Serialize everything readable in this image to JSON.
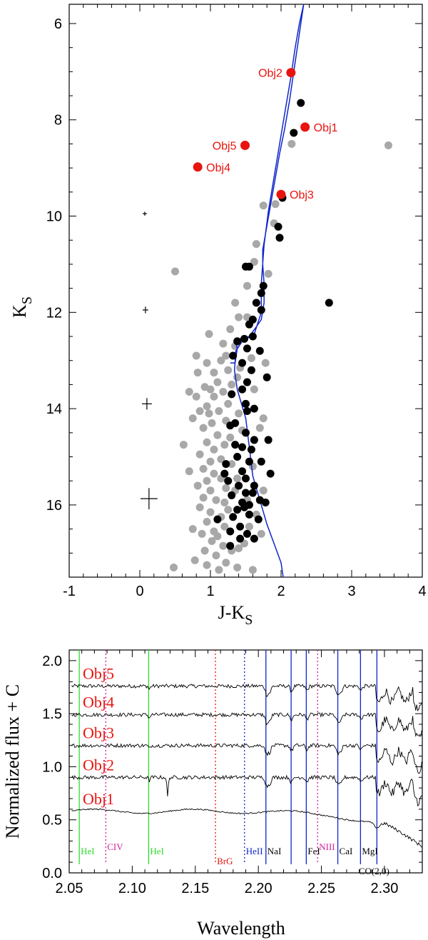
{
  "colors": {
    "red": "#e8140f",
    "grey": "#a8a8a8",
    "black": "#000000",
    "blue": "#1026c8",
    "green": "#2fdc2f",
    "magenta": "#d4209a"
  },
  "chart_data": [
    {
      "type": "scatter",
      "xlabel": "J-K",
      "xlabel_sub": "S",
      "ylabel": "K",
      "ylabel_sub": "S",
      "xlim": [
        -1,
        4
      ],
      "ylim": [
        17.5,
        5.6
      ],
      "y_inverted": true,
      "x_ticks": [
        "-1",
        "0",
        "1",
        "2",
        "3",
        "4"
      ],
      "y_ticks": [
        "6",
        "8",
        "10",
        "12",
        "14",
        "16"
      ],
      "objects": [
        {
          "name": "Obj1",
          "x": 2.34,
          "y": 8.15
        },
        {
          "name": "Obj2",
          "x": 2.14,
          "y": 7.02
        },
        {
          "name": "Obj3",
          "x": 2.0,
          "y": 9.55
        },
        {
          "name": "Obj4",
          "x": 0.82,
          "y": 8.98
        },
        {
          "name": "Obj5",
          "x": 1.49,
          "y": 8.53
        }
      ],
      "error_bars": [
        {
          "x": 0.07,
          "y": 9.95,
          "dx": 0.03,
          "dy": 0.04
        },
        {
          "x": 0.08,
          "y": 11.95,
          "dx": 0.04,
          "dy": 0.07
        },
        {
          "x": 0.1,
          "y": 13.9,
          "dx": 0.07,
          "dy": 0.12
        },
        {
          "x": 0.13,
          "y": 15.87,
          "dx": 0.12,
          "dy": 0.22
        }
      ],
      "black_points": [
        [
          2.28,
          7.65
        ],
        [
          2.18,
          8.27
        ],
        [
          2.02,
          9.62
        ],
        [
          1.96,
          10.22
        ],
        [
          1.98,
          10.45
        ],
        [
          1.55,
          11.05
        ],
        [
          1.5,
          11.05
        ],
        [
          1.75,
          11.45
        ],
        [
          1.72,
          11.6
        ],
        [
          1.65,
          11.8
        ],
        [
          1.72,
          11.95
        ],
        [
          1.6,
          12.15
        ],
        [
          2.68,
          11.8
        ],
        [
          1.55,
          12.25
        ],
        [
          1.48,
          12.55
        ],
        [
          1.6,
          12.5
        ],
        [
          1.38,
          12.6
        ],
        [
          1.52,
          12.75
        ],
        [
          1.45,
          13.05
        ],
        [
          1.32,
          12.9
        ],
        [
          1.7,
          12.8
        ],
        [
          1.58,
          13.2
        ],
        [
          1.8,
          13.35
        ],
        [
          1.52,
          13.45
        ],
        [
          1.45,
          13.6
        ],
        [
          1.3,
          13.7
        ],
        [
          1.5,
          13.9
        ],
        [
          1.62,
          14.0
        ],
        [
          1.52,
          14.05
        ],
        [
          1.28,
          14.35
        ],
        [
          1.35,
          14.3
        ],
        [
          1.5,
          14.5
        ],
        [
          1.62,
          14.65
        ],
        [
          1.82,
          14.65
        ],
        [
          1.45,
          14.8
        ],
        [
          1.38,
          15.0
        ],
        [
          1.55,
          15.1
        ],
        [
          1.72,
          15.1
        ],
        [
          1.45,
          15.3
        ],
        [
          1.5,
          15.45
        ],
        [
          1.85,
          15.35
        ],
        [
          1.2,
          15.35
        ],
        [
          1.25,
          15.5
        ],
        [
          1.4,
          15.6
        ],
        [
          1.62,
          15.6
        ],
        [
          1.3,
          15.8
        ],
        [
          1.45,
          15.95
        ],
        [
          1.7,
          15.9
        ],
        [
          1.78,
          15.95
        ],
        [
          1.38,
          16.1
        ],
        [
          1.55,
          16.2
        ],
        [
          1.68,
          16.3
        ],
        [
          1.42,
          16.45
        ],
        [
          1.28,
          16.55
        ],
        [
          1.52,
          16.6
        ],
        [
          1.62,
          16.7
        ],
        [
          1.28,
          16.85
        ],
        [
          1.1,
          16.3
        ],
        [
          1.32,
          16.25
        ],
        [
          1.55,
          16.0
        ],
        [
          1.22,
          15.15
        ],
        [
          1.6,
          15.75
        ],
        [
          1.42,
          16.7
        ],
        [
          1.48,
          16.05
        ],
        [
          1.35,
          14.75
        ],
        [
          1.58,
          14.85
        ],
        [
          1.5,
          15.75
        ]
      ],
      "grey_points": [
        [
          2.15,
          8.5
        ],
        [
          1.75,
          9.78
        ],
        [
          1.92,
          9.75
        ],
        [
          3.52,
          8.53
        ],
        [
          1.9,
          10.15
        ],
        [
          1.65,
          10.58
        ],
        [
          1.62,
          10.95
        ],
        [
          0.5,
          11.15
        ],
        [
          1.52,
          11.45
        ],
        [
          1.35,
          11.8
        ],
        [
          1.4,
          12.1
        ],
        [
          1.28,
          12.35
        ],
        [
          1.35,
          12.7
        ],
        [
          1.18,
          12.65
        ],
        [
          1.22,
          12.9
        ],
        [
          0.95,
          13.05
        ],
        [
          1.05,
          13.25
        ],
        [
          0.98,
          12.45
        ],
        [
          0.8,
          12.9
        ],
        [
          1.15,
          13.0
        ],
        [
          1.25,
          13.2
        ],
        [
          1.1,
          13.45
        ],
        [
          0.92,
          13.55
        ],
        [
          0.7,
          13.65
        ],
        [
          0.8,
          13.75
        ],
        [
          0.95,
          13.95
        ],
        [
          1.05,
          13.75
        ],
        [
          1.18,
          13.65
        ],
        [
          1.3,
          13.5
        ],
        [
          1.38,
          13.35
        ],
        [
          1.25,
          13.9
        ],
        [
          1.12,
          14.05
        ],
        [
          0.98,
          14.1
        ],
        [
          0.85,
          14.05
        ],
        [
          1.4,
          14.1
        ],
        [
          1.22,
          14.25
        ],
        [
          1.02,
          14.3
        ],
        [
          0.9,
          14.4
        ],
        [
          1.1,
          14.55
        ],
        [
          0.95,
          14.7
        ],
        [
          1.2,
          14.75
        ],
        [
          1.05,
          14.85
        ],
        [
          0.85,
          14.95
        ],
        [
          1.0,
          15.1
        ],
        [
          1.15,
          15.05
        ],
        [
          1.3,
          15.15
        ],
        [
          0.9,
          15.25
        ],
        [
          1.05,
          15.35
        ],
        [
          0.95,
          15.5
        ],
        [
          1.15,
          15.45
        ],
        [
          0.82,
          15.6
        ],
        [
          1.0,
          15.7
        ],
        [
          1.22,
          15.65
        ],
        [
          0.9,
          15.85
        ],
        [
          1.08,
          15.9
        ],
        [
          1.2,
          15.95
        ],
        [
          0.85,
          16.05
        ],
        [
          1.0,
          16.15
        ],
        [
          1.15,
          16.25
        ],
        [
          0.95,
          16.35
        ],
        [
          1.2,
          16.45
        ],
        [
          1.05,
          16.55
        ],
        [
          0.88,
          16.6
        ],
        [
          1.02,
          16.75
        ],
        [
          1.18,
          16.85
        ],
        [
          0.92,
          16.95
        ],
        [
          1.08,
          17.05
        ],
        [
          0.78,
          17.15
        ],
        [
          1.22,
          17.2
        ],
        [
          0.95,
          17.25
        ],
        [
          1.4,
          16.9
        ],
        [
          1.55,
          16.45
        ],
        [
          1.72,
          16.6
        ],
        [
          1.65,
          16.2
        ],
        [
          1.75,
          15.7
        ],
        [
          1.35,
          15.7
        ],
        [
          1.6,
          15.2
        ],
        [
          1.7,
          14.4
        ],
        [
          1.75,
          14.2
        ],
        [
          1.62,
          13.6
        ],
        [
          1.42,
          13.15
        ],
        [
          1.78,
          13.05
        ],
        [
          1.58,
          12.95
        ],
        [
          1.52,
          12.1
        ],
        [
          1.82,
          11.2
        ],
        [
          0.48,
          17.3
        ],
        [
          0.75,
          16.5
        ],
        [
          0.7,
          15.3
        ],
        [
          0.62,
          14.75
        ],
        [
          0.75,
          14.2
        ],
        [
          1.3,
          16.95
        ],
        [
          1.48,
          16.8
        ],
        [
          1.38,
          17.3
        ],
        [
          1.6,
          17.35
        ],
        [
          1.12,
          17.35
        ],
        [
          1.0,
          13.6
        ],
        [
          0.82,
          13.25
        ],
        [
          1.28,
          14.6
        ],
        [
          1.45,
          14.45
        ],
        [
          1.38,
          15.45
        ],
        [
          1.52,
          15.9
        ],
        [
          1.1,
          16.65
        ],
        [
          1.25,
          16.1
        ]
      ],
      "isochrone": [
        [
          1.28,
          13.05
        ],
        [
          1.35,
          13.05
        ],
        [
          1.38,
          12.75
        ],
        [
          1.35,
          12.6
        ],
        [
          1.42,
          12.55
        ],
        [
          1.55,
          12.5
        ],
        [
          1.65,
          12.3
        ],
        [
          1.72,
          12.15
        ],
        [
          1.76,
          11.8
        ],
        [
          1.76,
          11.4
        ],
        [
          1.74,
          11.0
        ],
        [
          1.74,
          10.7
        ],
        [
          1.8,
          10.2
        ],
        [
          1.86,
          9.7
        ],
        [
          1.92,
          9.2
        ],
        [
          1.98,
          8.7
        ],
        [
          2.05,
          8.2
        ],
        [
          2.12,
          7.6
        ],
        [
          2.18,
          7.0
        ],
        [
          2.24,
          6.4
        ],
        [
          2.28,
          6.0
        ],
        [
          2.32,
          5.6
        ],
        [
          2.26,
          6.0
        ],
        [
          2.2,
          6.5
        ],
        [
          2.14,
          7.1
        ],
        [
          2.06,
          7.8
        ],
        [
          1.98,
          8.5
        ],
        [
          1.9,
          9.2
        ],
        [
          1.82,
          9.9
        ],
        [
          1.76,
          10.6
        ],
        [
          1.72,
          11.4
        ],
        [
          1.72,
          12.0
        ],
        [
          1.62,
          12.45
        ],
        [
          1.45,
          12.6
        ],
        [
          1.36,
          12.8
        ],
        [
          1.34,
          13.2
        ],
        [
          1.38,
          13.6
        ],
        [
          1.5,
          14.2
        ],
        [
          1.55,
          14.8
        ],
        [
          1.6,
          15.4
        ],
        [
          1.7,
          15.9
        ],
        [
          1.8,
          16.4
        ],
        [
          1.9,
          16.8
        ],
        [
          2.0,
          17.2
        ],
        [
          2.03,
          17.5
        ]
      ]
    },
    {
      "type": "line",
      "xlabel": "Wavelength",
      "ylabel": "Normalized flux + C",
      "xlim": [
        2.05,
        2.33
      ],
      "ylim": [
        0.0,
        2.1
      ],
      "x_ticks": [
        "2.05",
        "2.10",
        "2.15",
        "2.20",
        "2.25",
        "2.30"
      ],
      "y_ticks": [
        "0.0",
        "0.5",
        "1.0",
        "1.5",
        "2.0"
      ],
      "series": [
        {
          "name": "Obj5",
          "offset": 1.76
        },
        {
          "name": "Obj4",
          "offset": 1.49
        },
        {
          "name": "Obj3",
          "offset": 1.2
        },
        {
          "name": "Obj2",
          "offset": 0.9
        },
        {
          "name": "Obj1",
          "offset": 0.58
        }
      ],
      "lines": [
        {
          "name": "HeI",
          "x": 2.058,
          "style": "solid",
          "color": "green"
        },
        {
          "name": "CIV",
          "x": 2.079,
          "style": "dotted",
          "color": "magenta"
        },
        {
          "name": "HeI",
          "x": 2.113,
          "style": "solid",
          "color": "green"
        },
        {
          "name": "BrG",
          "x": 2.166,
          "style": "dotted",
          "color": "red"
        },
        {
          "name": "HeII",
          "x": 2.189,
          "style": "dotted",
          "color": "blue"
        },
        {
          "name": "NaI",
          "x": 2.206,
          "style": "solid",
          "color": "blue"
        },
        {
          "name": "",
          "x": 2.226,
          "style": "solid",
          "color": "blue"
        },
        {
          "name": "FeI",
          "x": 2.238,
          "style": "solid",
          "color": "blue"
        },
        {
          "name": "NIII",
          "x": 2.247,
          "style": "dotted",
          "color": "magenta"
        },
        {
          "name": "CaI",
          "x": 2.263,
          "style": "solid",
          "color": "blue"
        },
        {
          "name": "MgI",
          "x": 2.281,
          "style": "solid",
          "color": "blue"
        },
        {
          "name": "CO(2,0)",
          "x": 2.294,
          "style": "solid",
          "color": "blue"
        }
      ]
    }
  ]
}
